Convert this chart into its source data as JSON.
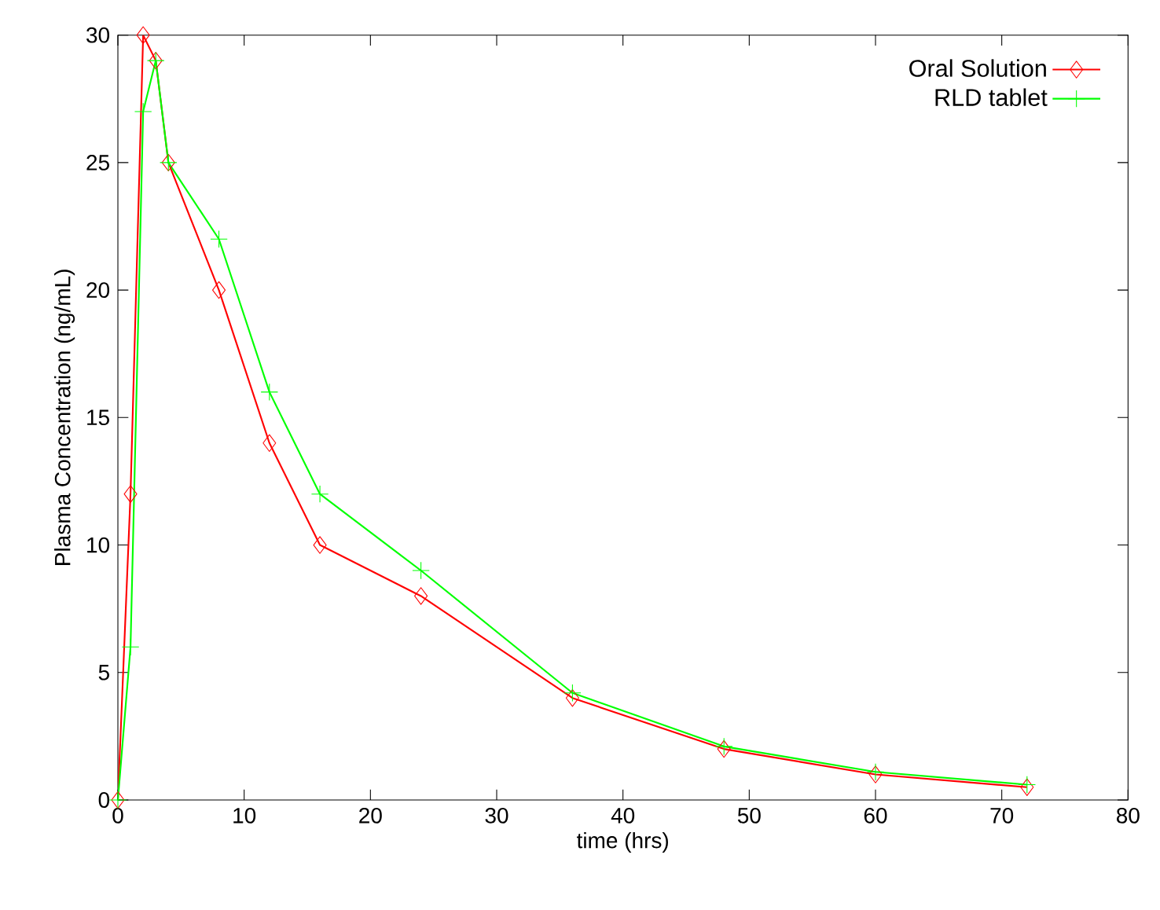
{
  "chart_data": {
    "type": "line",
    "xlabel": "time (hrs)",
    "ylabel": "Plasma Concentration (ng/mL)",
    "x": [
      0,
      1,
      2,
      3,
      4,
      8,
      12,
      16,
      24,
      36,
      48,
      60,
      72
    ],
    "series": [
      {
        "name": "Oral Solution",
        "color": "#ff0000",
        "marker": "diamond",
        "values": [
          0,
          12,
          30,
          29,
          25,
          20,
          14,
          10,
          8,
          4,
          2,
          1,
          0.5
        ]
      },
      {
        "name": "RLD tablet",
        "color": "#00ff00",
        "marker": "cross",
        "values": [
          0,
          6,
          27,
          29,
          25,
          22,
          16,
          12,
          9,
          4.2,
          2.1,
          1.1,
          0.6
        ]
      }
    ],
    "xlim": [
      0,
      80
    ],
    "ylim": [
      0,
      30
    ],
    "xticks": [
      0,
      10,
      20,
      30,
      40,
      50,
      60,
      70,
      80
    ],
    "yticks": [
      0,
      5,
      10,
      15,
      20,
      25,
      30
    ],
    "legend": "top right",
    "line_style": "solid"
  }
}
